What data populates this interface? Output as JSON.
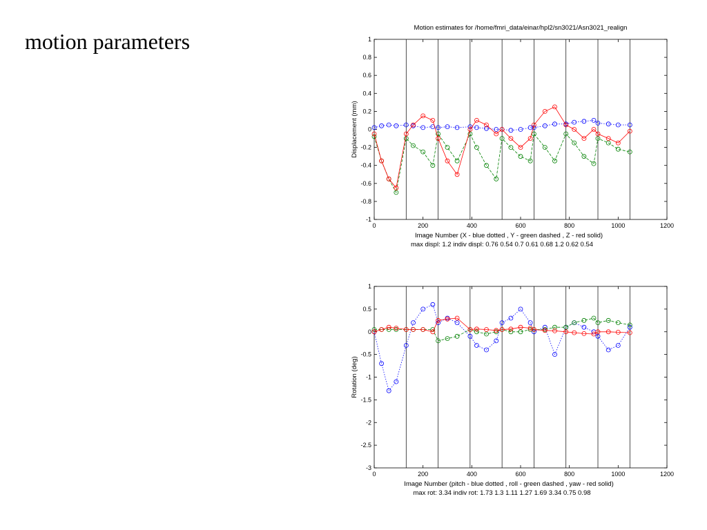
{
  "slide": {
    "title": "motion parameters"
  },
  "chart_data": [
    {
      "type": "scatter",
      "title": "Motion estimates for /home/fmri_data/einar/hpl2/sn3021/Asn3021_realign",
      "ylabel": "Displacement (mm)",
      "xlabel": "Image Number    (X - blue dotted , Y - green dashed , Z - red solid)",
      "footer": "max displ: 1.2     indiv displ:  0.76  0.54  0.7  0.61  0.68  1.2  0.62  0.54",
      "xlim": [
        0,
        1200
      ],
      "ylim": [
        -1,
        1
      ],
      "xticks": [
        0,
        200,
        400,
        600,
        800,
        1000,
        1200
      ],
      "yticks": [
        -1,
        -0.8,
        -0.6,
        -0.4,
        -0.2,
        0,
        0.2,
        0.4,
        0.6,
        0.8,
        1
      ],
      "session_boundaries": [
        131,
        262,
        393,
        524,
        655,
        786,
        917,
        1048
      ],
      "grid": false,
      "series_colors": [
        "#0000ff",
        "#008000",
        "#ff0000"
      ],
      "series": [
        {
          "x": [
            0,
            30,
            60,
            90,
            131,
            160,
            200,
            240,
            262,
            300,
            340,
            393,
            420,
            460,
            500,
            524,
            560,
            600,
            640,
            655,
            700,
            740,
            786,
            820,
            860,
            900,
            917,
            960,
            1000,
            1048
          ],
          "values": [
            0.02,
            0.04,
            0.05,
            0.04,
            0.05,
            0.04,
            0.02,
            0.03,
            0.02,
            0.03,
            0.02,
            0.03,
            0.02,
            0.01,
            0.0,
            0.0,
            -0.01,
            0.0,
            0.02,
            0.02,
            0.04,
            0.06,
            0.06,
            0.08,
            0.09,
            0.1,
            0.07,
            0.06,
            0.05,
            0.05
          ]
        },
        {
          "x": [
            0,
            30,
            60,
            90,
            131,
            160,
            200,
            240,
            262,
            300,
            340,
            393,
            420,
            460,
            500,
            524,
            560,
            600,
            640,
            655,
            700,
            740,
            786,
            820,
            860,
            900,
            917,
            960,
            1000,
            1048
          ],
          "values": [
            -0.08,
            -0.35,
            -0.55,
            -0.7,
            -0.1,
            -0.18,
            -0.25,
            -0.4,
            -0.05,
            -0.2,
            -0.35,
            -0.05,
            -0.2,
            -0.4,
            -0.55,
            -0.1,
            -0.2,
            -0.3,
            -0.35,
            -0.05,
            -0.2,
            -0.35,
            -0.05,
            -0.15,
            -0.3,
            -0.38,
            -0.1,
            -0.15,
            -0.22,
            -0.25
          ]
        },
        {
          "x": [
            0,
            30,
            60,
            90,
            131,
            160,
            200,
            240,
            262,
            300,
            340,
            393,
            420,
            460,
            500,
            524,
            560,
            600,
            640,
            655,
            700,
            740,
            786,
            820,
            860,
            900,
            917,
            960,
            1000,
            1048
          ],
          "values": [
            -0.05,
            -0.35,
            -0.55,
            -0.65,
            -0.05,
            0.05,
            0.15,
            0.1,
            -0.1,
            -0.35,
            -0.5,
            0.0,
            0.1,
            0.05,
            -0.05,
            0.0,
            -0.1,
            -0.2,
            -0.1,
            0.05,
            0.2,
            0.25,
            0.05,
            0.0,
            -0.1,
            0.0,
            -0.05,
            -0.1,
            -0.15,
            -0.02
          ]
        }
      ]
    },
    {
      "type": "scatter",
      "ylabel": "Rotation (deg)",
      "xlabel": "Image Number    (pitch - blue dotted , roll - green dashed , yaw - red solid)",
      "footer": "max rot: 3.34     indiv rot:  1.73  1.3  1.11  1.27  1.69  3.34  0.75  0.98",
      "xlim": [
        0,
        1200
      ],
      "ylim": [
        -3,
        1
      ],
      "xticks": [
        0,
        200,
        400,
        600,
        800,
        1000,
        1200
      ],
      "yticks": [
        -3,
        -2.5,
        -2,
        -1.5,
        -1,
        -0.5,
        0,
        0.5,
        1
      ],
      "session_boundaries": [
        131,
        262,
        393,
        524,
        655,
        786,
        917,
        1048
      ],
      "grid": false,
      "series_colors": [
        "#0000ff",
        "#008000",
        "#ff0000"
      ],
      "series": [
        {
          "x": [
            0,
            30,
            60,
            90,
            131,
            160,
            200,
            240,
            262,
            300,
            340,
            393,
            420,
            460,
            500,
            524,
            560,
            600,
            640,
            655,
            700,
            740,
            786,
            820,
            860,
            900,
            917,
            960,
            1000,
            1048
          ],
          "values": [
            0.0,
            -0.7,
            -1.3,
            -1.1,
            -0.3,
            0.2,
            0.5,
            0.6,
            0.2,
            0.3,
            0.2,
            -0.1,
            -0.3,
            -0.4,
            -0.2,
            0.2,
            0.3,
            0.5,
            0.2,
            0.0,
            0.1,
            -0.5,
            0.1,
            0.2,
            0.1,
            0.0,
            -0.1,
            -0.4,
            -0.3,
            0.1
          ]
        },
        {
          "x": [
            0,
            30,
            60,
            90,
            131,
            160,
            200,
            240,
            262,
            300,
            340,
            393,
            420,
            460,
            500,
            524,
            560,
            600,
            640,
            655,
            700,
            740,
            786,
            820,
            860,
            900,
            917,
            960,
            1000,
            1048
          ],
          "values": [
            0.05,
            0.05,
            0.05,
            0.05,
            0.05,
            0.05,
            0.05,
            0.05,
            -0.2,
            -0.15,
            -0.1,
            0.05,
            0.0,
            -0.05,
            0.0,
            0.05,
            0.0,
            0.0,
            0.05,
            0.05,
            0.05,
            0.1,
            0.1,
            0.2,
            0.25,
            0.3,
            0.2,
            0.25,
            0.2,
            0.15
          ]
        },
        {
          "x": [
            0,
            30,
            60,
            90,
            131,
            160,
            200,
            240,
            262,
            300,
            340,
            393,
            420,
            460,
            500,
            524,
            560,
            600,
            640,
            655,
            700,
            740,
            786,
            820,
            860,
            900,
            917,
            960,
            1000,
            1048
          ],
          "values": [
            0.0,
            0.05,
            0.1,
            0.08,
            0.05,
            0.05,
            0.05,
            0.0,
            0.25,
            0.28,
            0.3,
            0.05,
            0.06,
            0.05,
            0.03,
            0.05,
            0.06,
            0.1,
            0.08,
            0.05,
            0.03,
            0.02,
            0.0,
            -0.02,
            -0.04,
            -0.05,
            0.0,
            0.0,
            -0.01,
            -0.02
          ]
        }
      ]
    }
  ]
}
